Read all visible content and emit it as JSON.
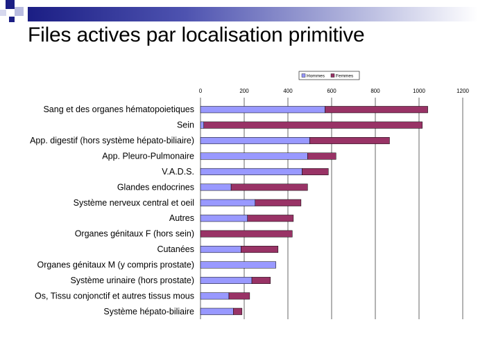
{
  "slide": {
    "title": "Files actives par localisation primitive"
  },
  "colors": {
    "title_band": "#1b1e84",
    "hommes": "#9999ff",
    "femmes": "#993366",
    "grid": "#000000"
  },
  "chart_data": {
    "type": "bar",
    "orientation": "horizontal",
    "stacked": true,
    "title": "",
    "xlabel": "",
    "ylabel": "",
    "xlim": [
      0,
      1200
    ],
    "xticks": [
      0,
      200,
      400,
      600,
      800,
      1000,
      1200
    ],
    "grid": true,
    "legend_position": "top-right",
    "categories": [
      "Sang et des organes hématopoietiques",
      "Sein",
      "App. digestif (hors système hépato-biliaire)",
      "App. Pleuro-Pulmonaire",
      "V.A.D.S.",
      "Glandes endocrines",
      "Système nerveux central et oeil",
      "Autres",
      "Organes génitaux F (hors sein)",
      "Cutanées",
      "Organes génitaux M (y compris prostate)",
      "Système urinaire (hors prostate)",
      "Os, Tissu conjonctif et autres tissus mous",
      "Système hépato-biliaire"
    ],
    "series": [
      {
        "name": "Hommes",
        "color": "#9999ff",
        "values": [
          570,
          15,
          500,
          490,
          465,
          140,
          250,
          215,
          0,
          185,
          345,
          235,
          130,
          150
        ]
      },
      {
        "name": "Femmes",
        "color": "#993366",
        "values": [
          470,
          1000,
          365,
          130,
          120,
          350,
          210,
          210,
          420,
          170,
          0,
          85,
          95,
          40
        ]
      }
    ]
  }
}
